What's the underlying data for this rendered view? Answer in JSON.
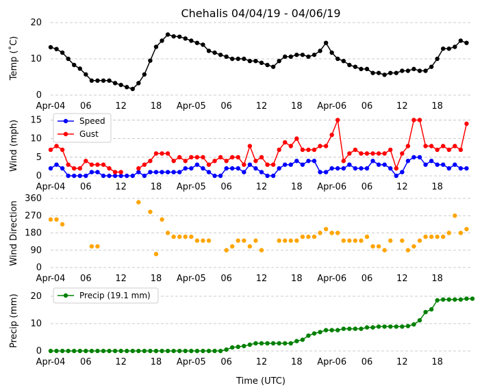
{
  "figure_title": "Chehalis 04/04/19 - 04/06/19",
  "x_axis_title": "Time (UTC)",
  "x_tick_labels": [
    "Apr-04",
    "06",
    "12",
    "18",
    "Apr-05",
    "06",
    "12",
    "18",
    "Apr-06",
    "06",
    "12",
    "18"
  ],
  "x_tick_hours": [
    0,
    6,
    12,
    18,
    24,
    30,
    36,
    42,
    48,
    54,
    60,
    66
  ],
  "x_range_hours": [
    0,
    72
  ],
  "colors": {
    "speed": "#0000ff",
    "gust": "#ff0000",
    "direction": "#ffa500",
    "precip": "#008000",
    "temp": "#000000",
    "grid": "#bbbbbb"
  },
  "chart_data": [
    {
      "type": "line",
      "ylabel": "Temp (˚C)",
      "ylim": [
        0,
        20
      ],
      "yticks": [
        0,
        10,
        20
      ],
      "grid": true,
      "x_start_hour": 0,
      "x_step_hours": 1,
      "series": [
        {
          "key": "temp",
          "values": [
            13.2,
            12.7,
            11.7,
            10.0,
            8.3,
            7.3,
            5.7,
            4.0,
            4.0,
            4.0,
            4.0,
            3.3,
            2.8,
            2.2,
            1.7,
            3.3,
            5.7,
            9.5,
            13.3,
            15.0,
            16.7,
            16.2,
            16.1,
            15.6,
            15.0,
            14.4,
            13.9,
            12.2,
            11.7,
            11.1,
            10.6,
            10.0,
            10.0,
            10.0,
            9.4,
            9.4,
            8.9,
            8.3,
            7.8,
            9.4,
            10.6,
            10.6,
            11.1,
            11.1,
            10.6,
            11.1,
            12.2,
            14.4,
            11.7,
            10.0,
            9.4,
            8.3,
            7.8,
            7.2,
            7.2,
            6.1,
            6.1,
            5.6,
            6.1,
            6.1,
            6.7,
            6.7,
            7.2,
            6.7,
            6.7,
            7.8,
            10.0,
            12.8,
            12.8,
            13.3,
            15.0,
            14.4
          ]
        }
      ]
    },
    {
      "type": "line",
      "ylabel": "Wind (mph)",
      "ylim": [
        0,
        16
      ],
      "yticks": [
        0,
        5,
        10,
        15
      ],
      "grid": true,
      "legend": "top-left",
      "x_start_hour": 0,
      "x_step_hours": 1,
      "series": [
        {
          "key": "speed",
          "name": "Speed",
          "values": [
            2,
            3,
            2,
            0,
            0,
            0,
            0,
            1,
            1,
            0,
            0,
            0,
            0,
            0,
            0,
            1,
            0,
            1,
            1,
            1,
            1,
            1,
            1,
            2,
            2,
            3,
            2,
            1,
            0,
            0,
            2,
            2,
            2,
            1,
            3,
            2,
            1,
            0,
            0,
            2,
            3,
            3,
            4,
            3,
            4,
            4,
            1,
            1,
            2,
            2,
            2,
            3,
            2,
            2,
            2,
            4,
            3,
            3,
            2,
            0,
            1,
            4,
            5,
            5,
            3,
            4,
            3,
            3,
            2,
            3,
            2,
            2
          ]
        },
        {
          "key": "gust",
          "name": "Gust",
          "values": [
            7,
            8,
            7,
            3,
            2,
            2,
            4,
            3,
            3,
            3,
            2,
            1,
            1,
            null,
            null,
            2,
            3,
            4,
            6,
            6,
            6,
            4,
            5,
            4,
            5,
            5,
            5,
            3,
            4,
            5,
            4,
            5,
            5,
            3,
            8,
            4,
            5,
            3,
            3,
            7,
            9,
            8,
            10,
            7,
            7,
            7,
            8,
            8,
            11,
            15,
            4,
            6,
            7,
            6,
            6,
            6,
            6,
            6,
            7,
            2,
            6,
            8,
            15,
            15,
            8,
            8,
            7,
            8,
            7,
            8,
            7,
            14
          ]
        }
      ]
    },
    {
      "type": "scatter",
      "ylabel": "Wind Direction",
      "ylim": [
        0,
        360
      ],
      "yticks": [
        0,
        90,
        180,
        270,
        360
      ],
      "grid": true,
      "x_start_hour": 0,
      "x_step_hours": 1,
      "series": [
        {
          "key": "direction",
          "values": [
            250,
            250,
            225,
            null,
            null,
            null,
            null,
            110,
            110,
            null,
            null,
            null,
            null,
            null,
            null,
            340,
            null,
            290,
            70,
            250,
            180,
            160,
            160,
            160,
            160,
            140,
            140,
            140,
            null,
            null,
            90,
            110,
            140,
            140,
            110,
            140,
            90,
            null,
            null,
            140,
            140,
            140,
            140,
            160,
            160,
            160,
            180,
            200,
            180,
            180,
            140,
            140,
            140,
            140,
            160,
            110,
            110,
            90,
            140,
            null,
            140,
            90,
            110,
            140,
            160,
            160,
            160,
            160,
            180,
            270,
            180,
            200
          ]
        }
      ]
    },
    {
      "type": "line",
      "ylabel": "Precip (mm)",
      "ylim": [
        0,
        22
      ],
      "yticks": [
        0,
        10,
        20
      ],
      "grid": true,
      "legend": "top-left",
      "x_start_hour": 0,
      "x_step_hours": 1,
      "series": [
        {
          "key": "precip",
          "name": "Precip (19.1 mm)",
          "values": [
            0,
            0,
            0,
            0,
            0,
            0,
            0,
            0,
            0,
            0,
            0,
            0,
            0,
            0,
            0,
            0,
            0,
            0,
            0,
            0,
            0,
            0,
            0,
            0,
            0,
            0,
            0,
            0,
            0,
            0,
            0.5,
            1.3,
            1.5,
            1.8,
            2.3,
            2.8,
            2.8,
            2.8,
            2.8,
            2.8,
            2.8,
            2.8,
            3.6,
            4.1,
            5.6,
            6.4,
            6.9,
            7.6,
            7.6,
            7.6,
            8.1,
            8.1,
            8.1,
            8.1,
            8.6,
            8.6,
            8.9,
            8.9,
            8.9,
            8.9,
            8.9,
            9.1,
            9.7,
            11.2,
            14.2,
            15.2,
            18.5,
            18.8,
            18.8,
            18.8,
            18.8,
            19.1,
            19.1
          ]
        }
      ]
    }
  ]
}
